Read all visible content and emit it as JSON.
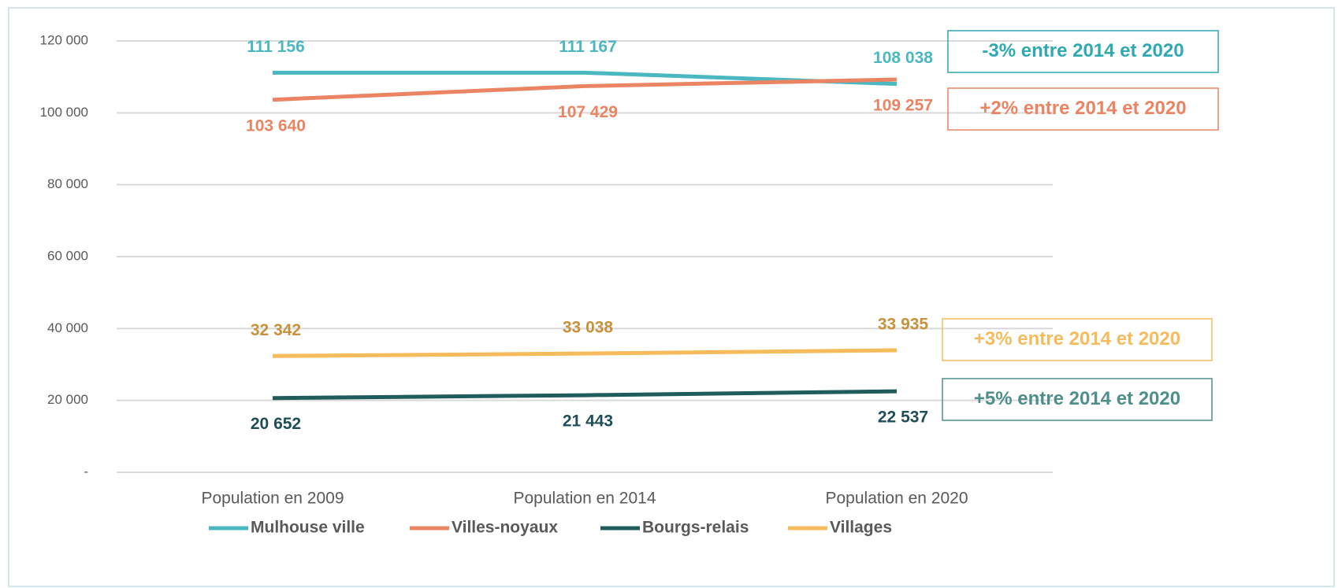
{
  "chart_data": {
    "type": "line",
    "categories": [
      "Population en 2009",
      "Population en 2014",
      "Population en 2020"
    ],
    "ylim": [
      0,
      120000
    ],
    "yticks": [
      {
        "value": 0,
        "label": "-"
      },
      {
        "value": 20000,
        "label": "20 000"
      },
      {
        "value": 40000,
        "label": "40 000"
      },
      {
        "value": 60000,
        "label": "60 000"
      },
      {
        "value": 80000,
        "label": "80 000"
      },
      {
        "value": 100000,
        "label": "100 000"
      },
      {
        "value": 120000,
        "label": "120 000"
      }
    ],
    "grid": true,
    "legend": "bottom",
    "series": [
      {
        "name": "Mulhouse ville",
        "color": "#4bb8c1",
        "label_color": "#4bb8c1",
        "label_side": "above",
        "values": [
          111156,
          111167,
          108038
        ],
        "value_labels": [
          "111 156",
          "111 167",
          "108 038"
        ]
      },
      {
        "name": "Villes-noyaux",
        "color": "#ea8462",
        "label_color": "#ea8462",
        "label_side": "below",
        "values": [
          103640,
          107429,
          109257
        ],
        "value_labels": [
          "103 640",
          "107 429",
          "109 257"
        ]
      },
      {
        "name": "Bourgs-relais",
        "color": "#1f5c5b",
        "label_color": "#1f4d58",
        "label_side": "below",
        "values": [
          20652,
          21443,
          22537
        ],
        "value_labels": [
          "20 652",
          "21 443",
          "22 537"
        ]
      },
      {
        "name": "Villages",
        "color": "#f6bb5c",
        "label_color": "#c8913b",
        "label_side": "above",
        "values": [
          32342,
          33038,
          33935
        ],
        "value_labels": [
          "32 342",
          "33 038",
          "33 935"
        ]
      }
    ],
    "annotations": [
      {
        "text": "-3% entre 2014 et 2020",
        "color": "#2fa9b2"
      },
      {
        "text": "+2% entre 2014 et 2020",
        "color": "#ea8462"
      },
      {
        "text": "+3% entre 2014 et 2020",
        "color": "#f6bb5c"
      },
      {
        "text": "+5% entre 2014 et 2020",
        "color": "#4e8f8c"
      }
    ]
  }
}
